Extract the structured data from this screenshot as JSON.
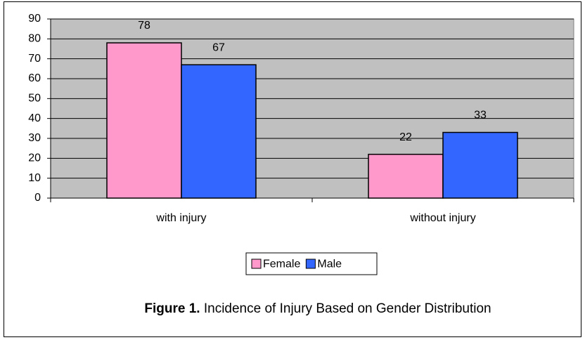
{
  "chart_data": {
    "type": "bar",
    "categories": [
      "with injury",
      "without injury"
    ],
    "series": [
      {
        "name": "Female",
        "color": "#ff99cc",
        "values": [
          78,
          22
        ]
      },
      {
        "name": "Male",
        "color": "#3366ff",
        "values": [
          67,
          33
        ]
      }
    ],
    "ylim": [
      0,
      90
    ],
    "yticks": [
      0,
      10,
      20,
      30,
      40,
      50,
      60,
      70,
      80,
      90
    ],
    "grid": true,
    "legend": "bottom",
    "caption_label": "Figure 1.",
    "caption": "Incidence of Injury Based on Gender Distribution"
  }
}
